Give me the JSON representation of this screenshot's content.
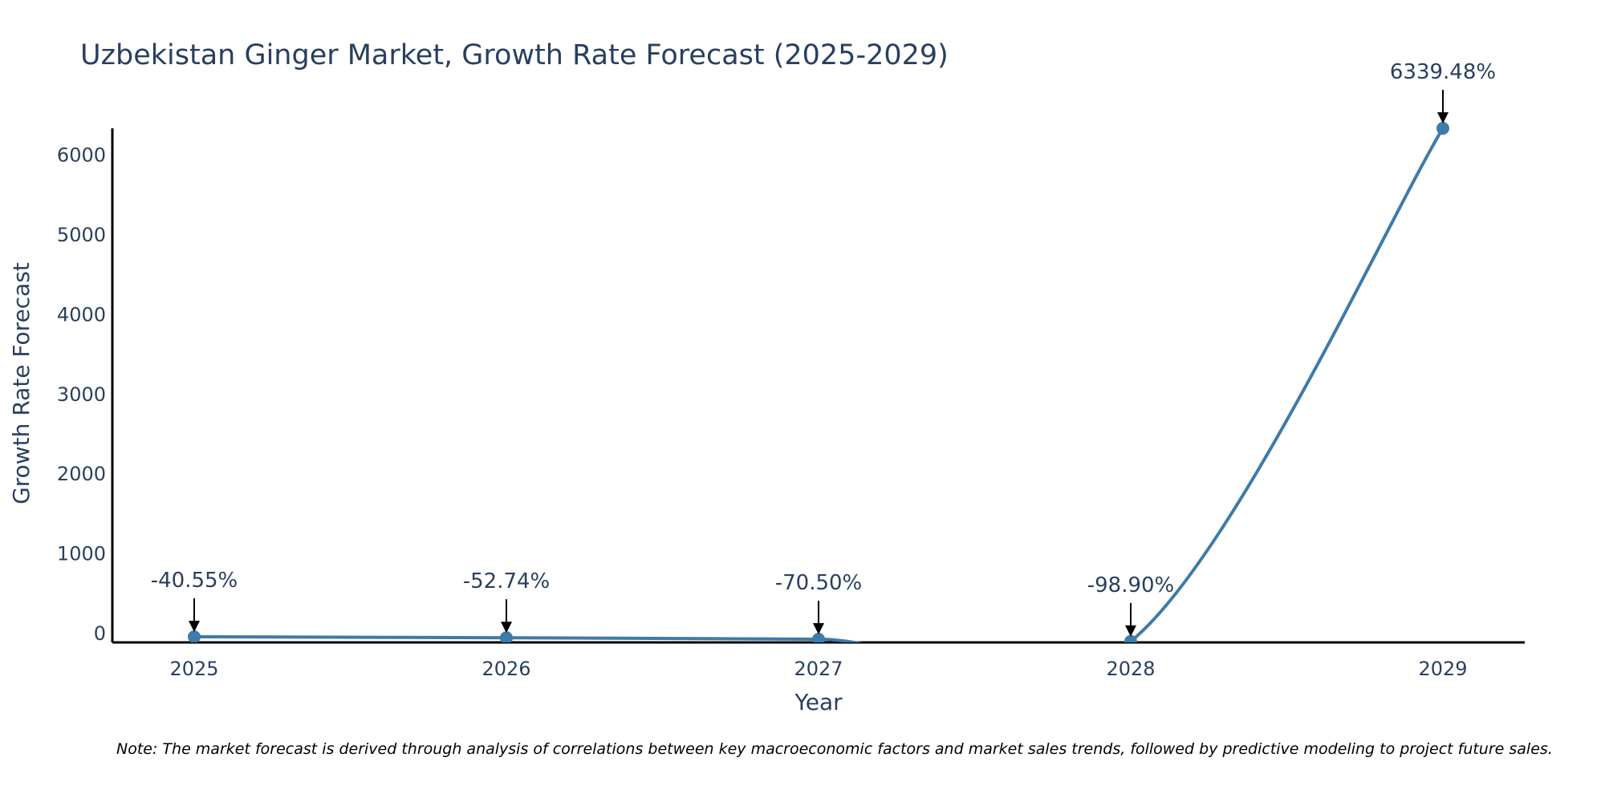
{
  "chart_data": {
    "type": "line",
    "title": "Uzbekistan Ginger Market, Growth Rate Forecast (2025-2029)",
    "xlabel": "Year",
    "ylabel": "Growth Rate Forecast",
    "categories": [
      "2025",
      "2026",
      "2027",
      "2028",
      "2029"
    ],
    "values": [
      -40.55,
      -52.74,
      -70.5,
      -98.9,
      6339.48
    ],
    "labels": [
      "-40.55%",
      "-52.74%",
      "-70.50%",
      "-98.90%",
      "6339.48%"
    ],
    "ylim": [
      -111,
      6339.48
    ],
    "yticks": [
      0,
      1000,
      2000,
      3000,
      4000,
      5000,
      6000
    ],
    "ytick_labels": [
      "0",
      "1000",
      "2000",
      "3000",
      "4000",
      "5000",
      "6000"
    ],
    "grid": false,
    "line_color": "#3d7ba8",
    "note": "Note: The market forecast is derived through analysis of correlations between key macroeconomic factors and market sales trends, followed by predictive modeling to project future sales."
  }
}
